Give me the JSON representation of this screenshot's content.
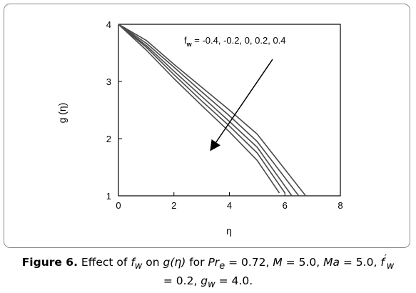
{
  "chart_data": {
    "type": "line",
    "ylabel": "g (η)",
    "xlabel": "η",
    "xlim": [
      0,
      8
    ],
    "ylim": [
      1,
      4
    ],
    "x_ticks": [
      "0",
      "2",
      "4",
      "6",
      "8"
    ],
    "y_ticks": [
      "1",
      "2",
      "3",
      "4"
    ],
    "annotation": {
      "text_prefix": "f",
      "text_sub": "w",
      "text_values": " = -0.4, -0.2, 0, 0.2, 0.4",
      "arrow": "points toward decreasing curves as f_w increases"
    },
    "series": [
      {
        "values": [
          [
            0,
            4.0
          ],
          [
            1,
            3.55
          ],
          [
            2,
            3.05
          ],
          [
            3,
            2.58
          ],
          [
            4,
            2.12
          ],
          [
            5,
            1.62
          ],
          [
            5.8,
            1.05
          ]
        ]
      },
      {
        "values": [
          [
            0,
            4.0
          ],
          [
            1,
            3.6
          ],
          [
            2,
            3.12
          ],
          [
            3,
            2.66
          ],
          [
            4,
            2.22
          ],
          [
            5,
            1.75
          ],
          [
            6.0,
            1.05
          ]
        ]
      },
      {
        "values": [
          [
            0,
            4.0
          ],
          [
            1,
            3.63
          ],
          [
            2,
            3.18
          ],
          [
            3,
            2.74
          ],
          [
            4,
            2.3
          ],
          [
            5,
            1.85
          ],
          [
            6.25,
            1.0
          ]
        ]
      },
      {
        "values": [
          [
            0,
            4.0
          ],
          [
            1,
            3.67
          ],
          [
            2,
            3.25
          ],
          [
            3,
            2.82
          ],
          [
            4,
            2.4
          ],
          [
            5,
            1.95
          ],
          [
            6.5,
            1.0
          ]
        ]
      },
      {
        "values": [
          [
            0,
            4.0
          ],
          [
            1,
            3.72
          ],
          [
            2,
            3.3
          ],
          [
            3,
            2.9
          ],
          [
            4,
            2.5
          ],
          [
            5,
            2.08
          ],
          [
            6.75,
            1.0
          ]
        ]
      }
    ]
  },
  "caption": {
    "label": "Figure 6.",
    "t1": " Effect of ",
    "fw_base": "f",
    "fw_sub": "w",
    "t2": " on ",
    "g_eta": "g(η)",
    "t3": " for ",
    "pr_base": "Pr",
    "pr_sub": "e",
    "t4": " = 0.72, ",
    "m": "M",
    "t5": " = 5.0, ",
    "ma": "Ma",
    "t6": " = 5.0, ",
    "fwp_base": "f",
    "fwp_sup": "′",
    "fwp_sub": "w",
    "t7": " = 0.2, ",
    "gw_base": "g",
    "gw_sub": "w",
    "t8": " = 4.0."
  },
  "colors": {
    "line": "#4a4a4a",
    "axis": "#000000",
    "frame": "#8c8c8c"
  }
}
